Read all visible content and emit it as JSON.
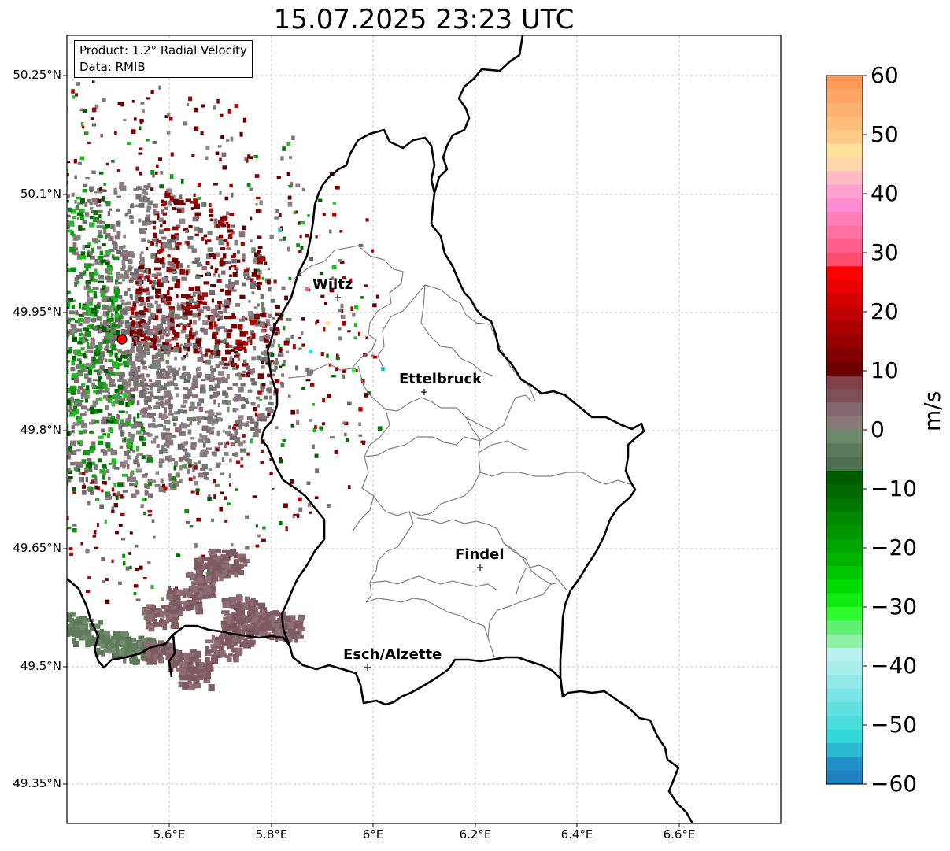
{
  "title": "15.07.2025 23:23 UTC",
  "info": {
    "product": "Product: 1.2° Radial Velocity",
    "data": "Data: RMIB"
  },
  "map": {
    "y_ticks": [
      "50.25°N",
      "50.1°N",
      "49.95°N",
      "49.8°N",
      "49.65°N",
      "49.5°N",
      "49.35°N"
    ],
    "x_ticks": [
      "5.6°E",
      "5.8°E",
      "6°E",
      "6.2°E",
      "6.4°E",
      "6.6°E"
    ],
    "grid": true,
    "cities": [
      "Wiltz",
      "Ettelbruck",
      "Findel",
      "Esch/Alzette"
    ],
    "radar_site_marker_color": "#ff0000"
  },
  "colorbar": {
    "unit": "m/s",
    "ticks": [
      "60",
      "50",
      "40",
      "30",
      "20",
      "10",
      "0",
      "−10",
      "−20",
      "−30",
      "−40",
      "−50",
      "−60"
    ],
    "range": [
      -60,
      60
    ],
    "bands": [
      "#ff9955",
      "#ffa563",
      "#ffb170",
      "#ffbd7a",
      "#ffc987",
      "#ffe199",
      "#ffd6aa",
      "#ffb9c0",
      "#ffa0d0",
      "#ff8bd0",
      "#ff7db7",
      "#ff6fa2",
      "#ff5f8a",
      "#ff4d72",
      "#ff0000",
      "#ea0000",
      "#d40000",
      "#c00000",
      "#ab0000",
      "#960000",
      "#820000",
      "#6e0000",
      "#824048",
      "#7e5057",
      "#846770",
      "#887878",
      "#6b8a6b",
      "#5a7b5a",
      "#4e7050",
      "#005c00",
      "#006a00",
      "#007800",
      "#008800",
      "#009600",
      "#00a400",
      "#00b400",
      "#00c800",
      "#00dc00",
      "#10ee10",
      "#30f830",
      "#60f070",
      "#90f0a8",
      "#b8f0f0",
      "#a8ecec",
      "#90e8e8",
      "#78e4e4",
      "#60e0e0",
      "#48dcdc",
      "#30d8d8",
      "#28b8d0",
      "#2090c8",
      "#2080c0"
    ]
  }
}
